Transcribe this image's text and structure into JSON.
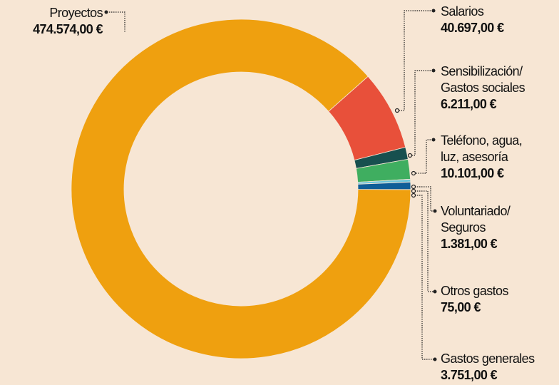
{
  "chart_data": {
    "type": "donut",
    "categories": [
      "Proyectos",
      "Salarios",
      "Sensibilización/\nGastos sociales",
      "Teléfono, agua,\nluz, asesoría",
      "Voluntariado/\nSeguros",
      "Otros gastos",
      "Gastos generales"
    ],
    "values": [
      474574,
      40697,
      6211,
      10101,
      1381,
      75,
      3751
    ],
    "value_labels": [
      "474.574,00 €",
      "40.697,00 €",
      "6.211,00 €",
      "10.101,00 €",
      "1.381,00 €",
      "75,00 €",
      "3.751,00 €"
    ],
    "colors": [
      "#efa00f",
      "#e8503a",
      "#17504f",
      "#3fae60",
      "#6cc6dc",
      "#b9d8e6",
      "#0f5e98"
    ]
  }
}
